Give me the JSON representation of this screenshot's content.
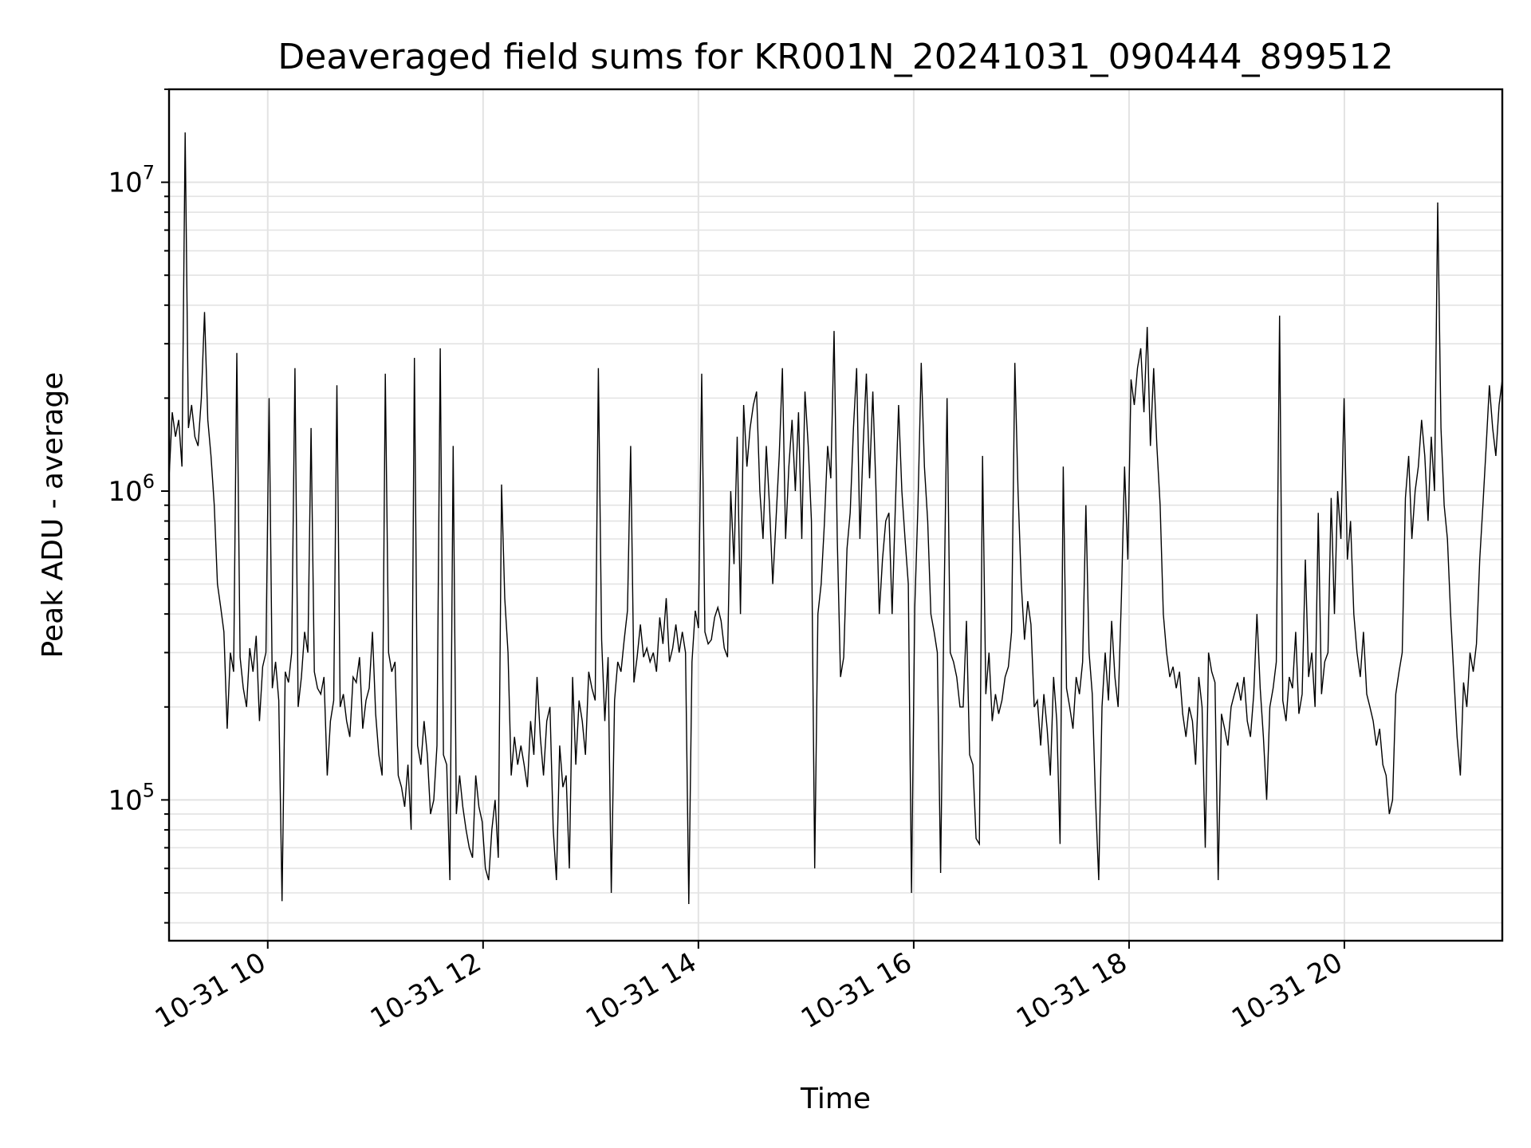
{
  "chart_data": {
    "type": "line",
    "title": "Deaveraged field sums for KR001N_20241031_090444_899512",
    "xlabel": "Time",
    "ylabel": "Peak ADU - average",
    "x_type": "datetime",
    "x_start": "2024-10-31 09:05",
    "x_end": "2024-10-31 21:28",
    "xlim": [
      "2024-10-31 09:05",
      "2024-10-31 21:28"
    ],
    "ylim": [
      35000,
      20000000
    ],
    "y_scale": "log",
    "grid": "on (major and minor, light gray)",
    "legend": "none",
    "line_color": "#000000",
    "x_ticks": [
      {
        "value": "2024-10-31 10:00",
        "label": "10-31 10"
      },
      {
        "value": "2024-10-31 12:00",
        "label": "10-31 12"
      },
      {
        "value": "2024-10-31 14:00",
        "label": "10-31 14"
      },
      {
        "value": "2024-10-31 16:00",
        "label": "10-31 16"
      },
      {
        "value": "2024-10-31 18:00",
        "label": "10-31 18"
      },
      {
        "value": "2024-10-31 20:00",
        "label": "10-31 20"
      }
    ],
    "y_ticks": [
      {
        "value": 100000,
        "base": "10",
        "exp": "5"
      },
      {
        "value": 1000000,
        "base": "10",
        "exp": "6"
      },
      {
        "value": 10000000,
        "base": "10",
        "exp": "7"
      }
    ],
    "series": [
      {
        "values": [
          1100000,
          1800000,
          1500000,
          1700000,
          1200000,
          14500000,
          1600000,
          1900000,
          1500000,
          1400000,
          2000000,
          3800000,
          1700000,
          1300000,
          900000,
          500000,
          420000,
          350000,
          170000,
          300000,
          260000,
          2800000,
          290000,
          230000,
          200000,
          310000,
          260000,
          340000,
          180000,
          270000,
          300000,
          2000000,
          230000,
          280000,
          210000,
          47000,
          260000,
          240000,
          300000,
          2500000,
          200000,
          250000,
          350000,
          300000,
          1600000,
          260000,
          230000,
          220000,
          250000,
          120000,
          180000,
          210000,
          2200000,
          200000,
          220000,
          180000,
          160000,
          250000,
          240000,
          290000,
          170000,
          210000,
          230000,
          350000,
          190000,
          140000,
          120000,
          2400000,
          300000,
          260000,
          280000,
          120000,
          110000,
          95000,
          130000,
          80000,
          2700000,
          150000,
          130000,
          180000,
          140000,
          90000,
          100000,
          150000,
          2900000,
          140000,
          130000,
          55000,
          1400000,
          90000,
          120000,
          95000,
          80000,
          70000,
          65000,
          120000,
          95000,
          85000,
          60000,
          55000,
          80000,
          100000,
          65000,
          1050000,
          450000,
          300000,
          120000,
          160000,
          130000,
          150000,
          130000,
          110000,
          180000,
          140000,
          250000,
          160000,
          120000,
          180000,
          200000,
          80000,
          55000,
          150000,
          110000,
          120000,
          60000,
          250000,
          130000,
          210000,
          180000,
          140000,
          260000,
          230000,
          210000,
          2500000,
          330000,
          180000,
          290000,
          50000,
          210000,
          280000,
          260000,
          330000,
          410000,
          1400000,
          240000,
          290000,
          370000,
          290000,
          310000,
          280000,
          300000,
          260000,
          390000,
          320000,
          450000,
          280000,
          310000,
          370000,
          300000,
          350000,
          300000,
          46000,
          280000,
          410000,
          360000,
          2400000,
          350000,
          320000,
          330000,
          390000,
          420000,
          380000,
          310000,
          290000,
          1000000,
          580000,
          1500000,
          400000,
          1900000,
          1200000,
          1600000,
          1900000,
          2100000,
          1000000,
          700000,
          1400000,
          900000,
          500000,
          800000,
          1300000,
          2500000,
          700000,
          1200000,
          1700000,
          1000000,
          1800000,
          700000,
          2100000,
          1400000,
          800000,
          60000,
          400000,
          500000,
          780000,
          1400000,
          1100000,
          3300000,
          700000,
          250000,
          290000,
          650000,
          850000,
          1600000,
          2500000,
          700000,
          1400000,
          2400000,
          1100000,
          2100000,
          1000000,
          400000,
          600000,
          800000,
          850000,
          400000,
          900000,
          1900000,
          1000000,
          700000,
          500000,
          50000,
          420000,
          900000,
          2600000,
          1200000,
          800000,
          400000,
          350000,
          300000,
          58000,
          380000,
          2000000,
          300000,
          280000,
          250000,
          200000,
          200000,
          380000,
          140000,
          130000,
          75000,
          72000,
          1300000,
          220000,
          300000,
          180000,
          220000,
          190000,
          210000,
          250000,
          270000,
          350000,
          2600000,
          1000000,
          500000,
          330000,
          440000,
          370000,
          200000,
          210000,
          150000,
          220000,
          170000,
          120000,
          250000,
          180000,
          72000,
          1200000,
          230000,
          200000,
          170000,
          250000,
          220000,
          280000,
          900000,
          300000,
          220000,
          100000,
          55000,
          200000,
          300000,
          210000,
          380000,
          250000,
          200000,
          450000,
          1200000,
          600000,
          2300000,
          1900000,
          2500000,
          2900000,
          1800000,
          3400000,
          1400000,
          2500000,
          1400000,
          900000,
          400000,
          300000,
          250000,
          270000,
          230000,
          260000,
          190000,
          160000,
          200000,
          180000,
          130000,
          250000,
          200000,
          70000,
          300000,
          260000,
          240000,
          55000,
          190000,
          170000,
          150000,
          200000,
          220000,
          240000,
          210000,
          250000,
          180000,
          160000,
          220000,
          400000,
          230000,
          160000,
          100000,
          200000,
          230000,
          280000,
          3700000,
          210000,
          180000,
          250000,
          230000,
          350000,
          190000,
          220000,
          600000,
          250000,
          300000,
          200000,
          850000,
          220000,
          280000,
          300000,
          950000,
          400000,
          1000000,
          700000,
          2000000,
          600000,
          800000,
          400000,
          300000,
          250000,
          350000,
          220000,
          200000,
          180000,
          150000,
          170000,
          130000,
          120000,
          90000,
          100000,
          220000,
          260000,
          300000,
          950000,
          1300000,
          700000,
          1000000,
          1200000,
          1700000,
          1300000,
          800000,
          1500000,
          1000000,
          8600000,
          1600000,
          900000,
          700000,
          400000,
          250000,
          160000,
          120000,
          240000,
          200000,
          300000,
          260000,
          320000,
          600000,
          900000,
          1400000,
          2200000,
          1600000,
          1300000,
          1900000,
          2300000
        ]
      }
    ]
  }
}
